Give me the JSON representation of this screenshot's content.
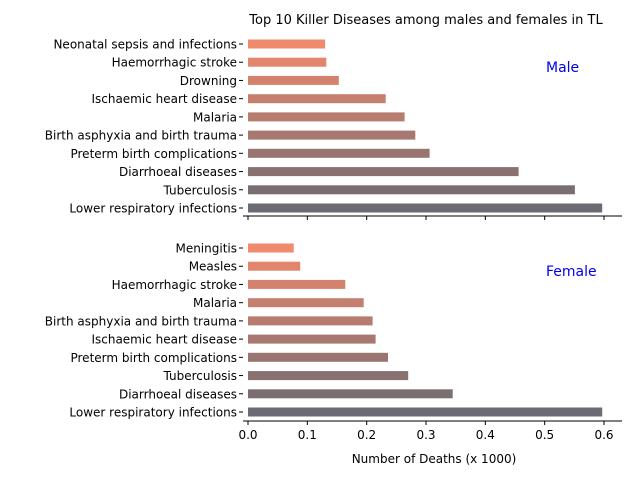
{
  "chart_data": [
    {
      "type": "bar",
      "orientation": "horizontal",
      "title": "Top 10 Killer Diseases among males and females in TL",
      "panel_label": "Male",
      "categories": [
        "Neonatal sepsis and infections",
        "Haemorrhagic stroke",
        "Drowning",
        "Ischaemic heart disease",
        "Malaria",
        "Birth asphyxia and birth trauma",
        "Preterm birth complications",
        "Diarrhoeal diseases",
        "Tuberculosis",
        "Lower respiratory infections"
      ],
      "values": [
        0.13,
        0.132,
        0.153,
        0.232,
        0.264,
        0.282,
        0.306,
        0.456,
        0.551,
        0.597
      ],
      "xlim": [
        0,
        0.63
      ],
      "grid": false
    },
    {
      "type": "bar",
      "orientation": "horizontal",
      "panel_label": "Female",
      "categories": [
        "Meningitis",
        "Measles",
        "Haemorrhagic stroke",
        "Malaria",
        "Birth asphyxia and birth trauma",
        "Ischaemic heart disease",
        "Preterm birth complications",
        "Tuberculosis",
        "Diarrhoeal diseases",
        "Lower respiratory infections"
      ],
      "values": [
        0.077,
        0.088,
        0.164,
        0.195,
        0.21,
        0.215,
        0.236,
        0.27,
        0.345,
        0.597
      ],
      "xlabel": "Number of Deaths (x 1000)",
      "xticks": [
        "0.0",
        "0.1",
        "0.2",
        "0.3",
        "0.4",
        "0.5",
        "0.6"
      ],
      "xlim": [
        0,
        0.63
      ],
      "grid": false
    }
  ],
  "colors": {
    "bar_start": "#f08a6c",
    "bar_end": "#6c6a72",
    "panel_label": "#0000ee"
  }
}
